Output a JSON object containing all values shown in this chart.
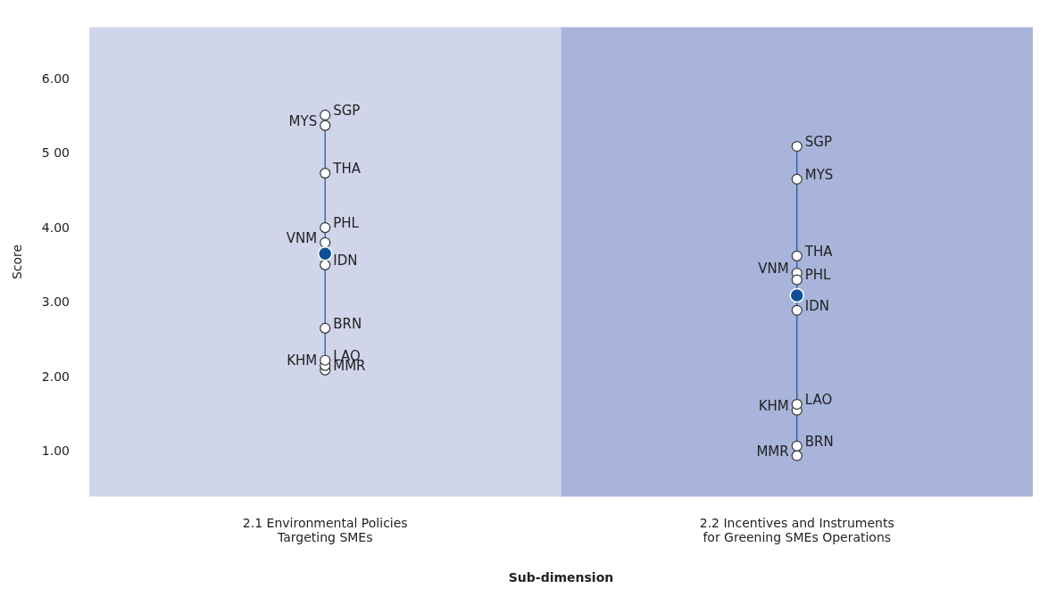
{
  "chart_data": {
    "type": "scatter",
    "xlabel": "Sub-dimension",
    "ylabel": "Score",
    "categories": [
      "2.1 Environmental Policies Targeting SMEs",
      "2.2 Incentives and Instruments for Greening SMEs Operations"
    ],
    "ylim": [
      0.4,
      6.7
    ],
    "yticks": [
      {
        "value": 1,
        "label": "1.00"
      },
      {
        "value": 2,
        "label": "2.00"
      },
      {
        "value": 3,
        "label": "3.00"
      },
      {
        "value": 4,
        "label": "4.00"
      },
      {
        "value": 5,
        "label": "5 00"
      },
      {
        "value": 6,
        "label": "6.00"
      }
    ],
    "grid": false,
    "legend": false,
    "marker": "circle",
    "bands": [
      {
        "axis": "x",
        "from": "2.1 Environmental Policies Targeting SMEs",
        "to": "2.1 Environmental Policies Targeting SMEs",
        "color": "#d0d5ea"
      },
      {
        "axis": "x",
        "from": "2.2 Incentives and Instruments for Greening SMEs Operations",
        "to": "2.2 Incentives and Instruments for Greening SMEs Operations",
        "color": "#a8b4da"
      }
    ],
    "series": [
      {
        "name": "SGP",
        "color": "#ffffff",
        "values": [
          5.52,
          5.1
        ]
      },
      {
        "name": "MYS",
        "color": "#ffffff",
        "values": [
          5.38,
          4.66
        ]
      },
      {
        "name": "THA",
        "color": "#ffffff",
        "values": [
          4.74,
          3.63
        ]
      },
      {
        "name": "PHL",
        "color": "#ffffff",
        "values": [
          4.01,
          3.31
        ]
      },
      {
        "name": "VNM",
        "color": "#ffffff",
        "values": [
          3.81,
          3.4
        ]
      },
      {
        "name": "IDN",
        "color": "#ffffff",
        "values": [
          3.51,
          2.9
        ]
      },
      {
        "name": "BRN",
        "color": "#ffffff",
        "values": [
          2.66,
          1.08
        ]
      },
      {
        "name": "LAO",
        "color": "#ffffff",
        "values": [
          2.23,
          1.64
        ]
      },
      {
        "name": "KHM",
        "color": "#ffffff",
        "values": [
          2.16,
          1.56
        ]
      },
      {
        "name": "MMR",
        "color": "#ffffff",
        "values": [
          2.1,
          0.95
        ]
      },
      {
        "color": "#0d4f94",
        "values": [
          3.66,
          3.1
        ]
      }
    ]
  }
}
